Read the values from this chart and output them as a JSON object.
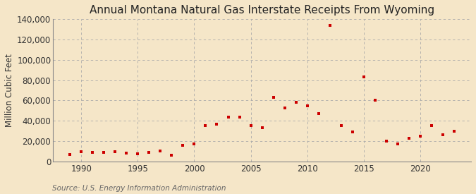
{
  "title": "Annual Montana Natural Gas Interstate Receipts From Wyoming",
  "ylabel": "Million Cubic Feet",
  "source": "Source: U.S. Energy Information Administration",
  "background_color": "#f5e6c8",
  "plot_background_color": "#f5e6c8",
  "marker_color": "#cc0000",
  "years": [
    1989,
    1990,
    1991,
    1992,
    1993,
    1994,
    1995,
    1996,
    1997,
    1998,
    1999,
    2000,
    2001,
    2002,
    2003,
    2004,
    2005,
    2006,
    2007,
    2008,
    2009,
    2010,
    2011,
    2012,
    2013,
    2014,
    2015,
    2016,
    2017,
    2018,
    2019,
    2020,
    2021,
    2022,
    2023
  ],
  "values": [
    7000,
    9500,
    9000,
    9000,
    9500,
    8000,
    7500,
    9000,
    10500,
    6000,
    16000,
    17000,
    35000,
    37000,
    44000,
    44000,
    35000,
    33000,
    63000,
    53000,
    58000,
    55000,
    47000,
    134000,
    35000,
    29000,
    83000,
    60000,
    20000,
    17000,
    23000,
    25000,
    35000,
    26000,
    30000
  ],
  "ylim": [
    0,
    140000
  ],
  "yticks": [
    0,
    20000,
    40000,
    60000,
    80000,
    100000,
    120000,
    140000
  ],
  "xticks": [
    1990,
    1995,
    2000,
    2005,
    2010,
    2015,
    2020
  ],
  "grid_color": "#aaaaaa",
  "title_fontsize": 11,
  "label_fontsize": 8.5,
  "source_fontsize": 7.5,
  "xlim_left": 1987.5,
  "xlim_right": 2024.5
}
